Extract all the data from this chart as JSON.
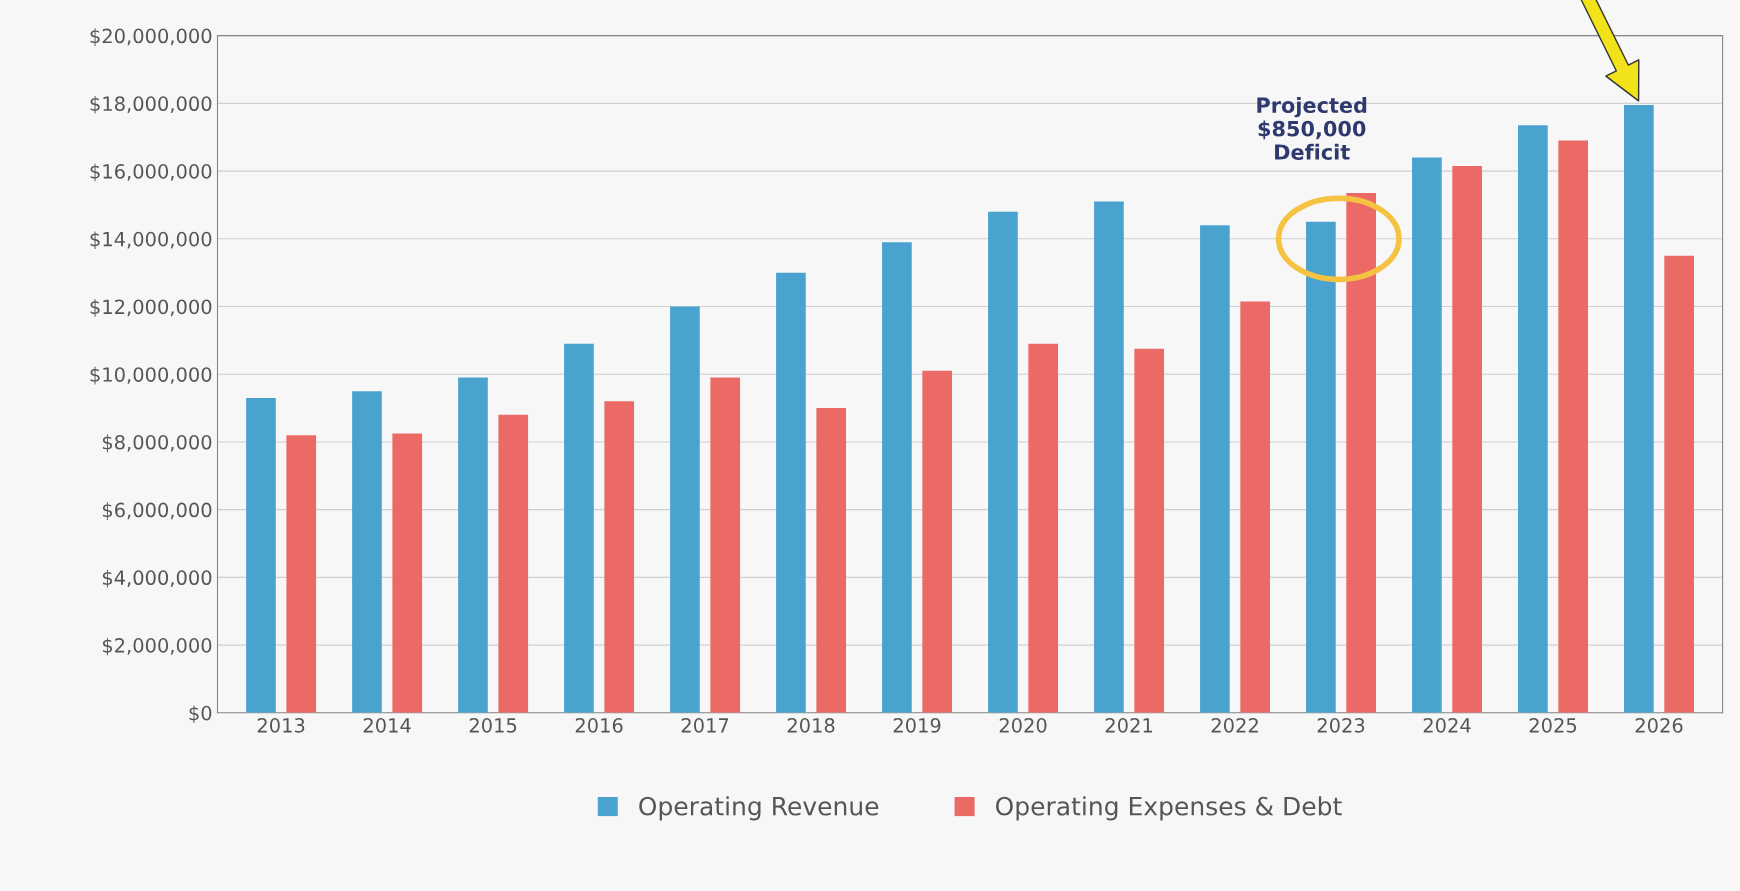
{
  "chart_data": {
    "type": "bar",
    "categories": [
      "2013",
      "2014",
      "2015",
      "2016",
      "2017",
      "2018",
      "2019",
      "2020",
      "2021",
      "2022",
      "2023",
      "2024",
      "2025",
      "2026"
    ],
    "series": [
      {
        "name": "Operating Revenue",
        "color": "#4aa3cf",
        "values": [
          9300000,
          9500000,
          9900000,
          10900000,
          12000000,
          13000000,
          13900000,
          14800000,
          15100000,
          14400000,
          14500000,
          16400000,
          17350000,
          17950000
        ]
      },
      {
        "name": "Operating Expenses & Debt",
        "color": "#ec6a66",
        "values": [
          8200000,
          8250000,
          8800000,
          9200000,
          9900000,
          9000000,
          10100000,
          10900000,
          10750000,
          12150000,
          15350000,
          16150000,
          16900000,
          13500000
        ]
      }
    ],
    "ylim": [
      0,
      20000000
    ],
    "yticks": [
      {
        "value": 0,
        "label": "$0"
      },
      {
        "value": 2000000,
        "label": "$2,000,000"
      },
      {
        "value": 4000000,
        "label": "$4,000,000"
      },
      {
        "value": 6000000,
        "label": "$6,000,000"
      },
      {
        "value": 8000000,
        "label": "$8,000,000"
      },
      {
        "value": 10000000,
        "label": "$10,000,000"
      },
      {
        "value": 12000000,
        "label": "$12,000,000"
      },
      {
        "value": 14000000,
        "label": "$14,000,000"
      },
      {
        "value": 16000000,
        "label": "$16,000,000"
      },
      {
        "value": 18000000,
        "label": "$18,000,000"
      },
      {
        "value": 20000000,
        "label": "$20,000,000"
      }
    ],
    "annotations": [
      "Projected\n$850,000\nDeficit"
    ],
    "grid": "y",
    "legend": "bottom"
  }
}
